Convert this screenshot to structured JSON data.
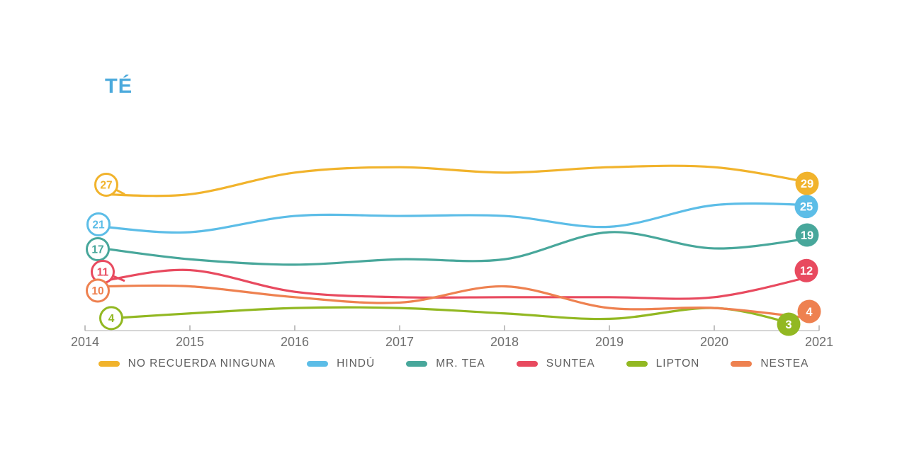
{
  "title": {
    "text": "TÉ"
  },
  "colors": {
    "title": "#4BA9DC",
    "axis_line": "#C8C8C8",
    "tick": "#ABABAB",
    "axis_label": "#6E6E6E",
    "legend_label": "#5E5E5E",
    "background": "#FFFFFF"
  },
  "chart_data": {
    "type": "line",
    "x": [
      2014,
      2015,
      2016,
      2017,
      2018,
      2019,
      2020,
      2021
    ],
    "x_tick_labels": [
      "2014",
      "2015",
      "2016",
      "2017",
      "2018",
      "2019",
      "2020",
      "2021"
    ],
    "grid": false,
    "legend_position": "bottom",
    "y_range_implied": [
      0,
      35
    ],
    "series": [
      {
        "name": "NO RECUERDA NINGUNA",
        "color": "#F1B32C",
        "values": [
          27,
          27,
          31,
          32,
          31,
          32,
          32,
          29
        ],
        "start_label": "27",
        "end_label": "29"
      },
      {
        "name": "HINDÚ",
        "color": "#5CBDE7",
        "values": [
          21,
          20,
          23,
          23,
          23,
          21,
          25,
          25
        ],
        "start_label": "21",
        "end_label": "25"
      },
      {
        "name": "MR. TEA",
        "color": "#48A79B",
        "values": [
          17,
          15,
          14,
          15,
          15,
          20,
          17,
          19
        ],
        "start_label": "17",
        "end_label": "19"
      },
      {
        "name": "SUNTEA",
        "color": "#E84A5F",
        "values": [
          11,
          13,
          9,
          8,
          8,
          8,
          8,
          12
        ],
        "start_label": "11",
        "end_label": "12"
      },
      {
        "name": "LIPTON",
        "color": "#92B822",
        "values": [
          4,
          5,
          6,
          6,
          5,
          4,
          6,
          3
        ],
        "start_label": "4",
        "end_label": "3"
      },
      {
        "name": "NESTEA",
        "color": "#EE8150",
        "values": [
          10,
          10,
          8,
          7,
          10,
          6,
          6,
          4
        ],
        "start_label": "10",
        "end_label": "4"
      }
    ]
  }
}
